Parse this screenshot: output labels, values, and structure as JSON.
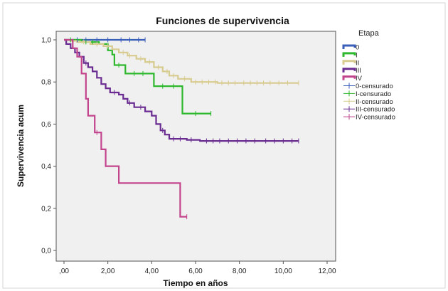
{
  "chart_data": {
    "type": "line",
    "step": true,
    "title": "Funciones de supervivencia",
    "xlabel": "Tiempo en años",
    "ylabel": "Supervivencia acum",
    "xlim": [
      0,
      12
    ],
    "ylim": [
      0,
      1
    ],
    "xticks": [
      ",00",
      "2,00",
      "4,00",
      "6,00",
      "8,00",
      "10,00",
      "12,00"
    ],
    "yticks": [
      "0,0",
      "0,2",
      "0,4",
      "0,6",
      "0,8",
      "1,0"
    ],
    "xtick_values": [
      0,
      2,
      4,
      6,
      8,
      10,
      12
    ],
    "ytick_values": [
      0,
      0.2,
      0.4,
      0.6,
      0.8,
      1.0
    ],
    "grid": false,
    "plot_background": "#f0f0f0",
    "legend_title": "Etapa",
    "legend_position": "right",
    "series": [
      {
        "name": "0",
        "color": "#3a5fb8",
        "points": [
          [
            0,
            1.0
          ],
          [
            3.7,
            1.0
          ]
        ],
        "censored": [
          0.6,
          1.0,
          1.5,
          2.0,
          2.6,
          3.0,
          3.4,
          3.7
        ]
      },
      {
        "name": "I",
        "color": "#2db82d",
        "points": [
          [
            0,
            1.0
          ],
          [
            0.8,
            1.0
          ],
          [
            0.8,
            0.99
          ],
          [
            1.6,
            0.99
          ],
          [
            1.6,
            0.98
          ],
          [
            2.0,
            0.98
          ],
          [
            2.0,
            0.95
          ],
          [
            2.2,
            0.95
          ],
          [
            2.2,
            0.93
          ],
          [
            2.3,
            0.93
          ],
          [
            2.3,
            0.88
          ],
          [
            2.8,
            0.88
          ],
          [
            2.8,
            0.84
          ],
          [
            4.1,
            0.84
          ],
          [
            4.1,
            0.78
          ],
          [
            5.4,
            0.78
          ],
          [
            5.4,
            0.65
          ],
          [
            6.7,
            0.65
          ]
        ],
        "censored": [
          0.3,
          1.0,
          1.3,
          2.5,
          3.2,
          3.6,
          4.5,
          5.0,
          6.0,
          6.7
        ]
      },
      {
        "name": "II",
        "color": "#d8cb8f",
        "points": [
          [
            0,
            1.0
          ],
          [
            0.3,
            1.0
          ],
          [
            0.3,
            0.995
          ],
          [
            0.6,
            0.995
          ],
          [
            0.6,
            0.99
          ],
          [
            1.2,
            0.99
          ],
          [
            1.2,
            0.98
          ],
          [
            1.8,
            0.98
          ],
          [
            1.8,
            0.97
          ],
          [
            2.2,
            0.97
          ],
          [
            2.2,
            0.955
          ],
          [
            2.5,
            0.955
          ],
          [
            2.5,
            0.94
          ],
          [
            2.9,
            0.94
          ],
          [
            2.9,
            0.925
          ],
          [
            3.3,
            0.925
          ],
          [
            3.3,
            0.91
          ],
          [
            3.7,
            0.91
          ],
          [
            3.7,
            0.895
          ],
          [
            4.1,
            0.895
          ],
          [
            4.1,
            0.87
          ],
          [
            4.5,
            0.87
          ],
          [
            4.5,
            0.85
          ],
          [
            4.8,
            0.85
          ],
          [
            4.8,
            0.83
          ],
          [
            5.2,
            0.83
          ],
          [
            5.2,
            0.815
          ],
          [
            5.8,
            0.815
          ],
          [
            5.8,
            0.8
          ],
          [
            7.0,
            0.8
          ],
          [
            7.0,
            0.795
          ],
          [
            10.7,
            0.795
          ]
        ],
        "censored": [
          0.9,
          1.5,
          2.0,
          2.7,
          3.0,
          3.5,
          3.9,
          4.3,
          4.7,
          5.0,
          5.5,
          6.0,
          6.3,
          6.6,
          6.9,
          7.2,
          7.5,
          7.8,
          8.2,
          8.5,
          8.8,
          9.1,
          9.4,
          9.8,
          10.2,
          10.7
        ]
      },
      {
        "name": "III",
        "color": "#6a2c91",
        "points": [
          [
            0,
            1.0
          ],
          [
            0.1,
            1.0
          ],
          [
            0.1,
            0.98
          ],
          [
            0.3,
            0.98
          ],
          [
            0.3,
            0.96
          ],
          [
            0.5,
            0.96
          ],
          [
            0.5,
            0.94
          ],
          [
            0.7,
            0.94
          ],
          [
            0.7,
            0.92
          ],
          [
            0.9,
            0.92
          ],
          [
            0.9,
            0.89
          ],
          [
            1.1,
            0.89
          ],
          [
            1.1,
            0.87
          ],
          [
            1.3,
            0.87
          ],
          [
            1.3,
            0.85
          ],
          [
            1.5,
            0.85
          ],
          [
            1.5,
            0.82
          ],
          [
            1.7,
            0.82
          ],
          [
            1.7,
            0.79
          ],
          [
            1.9,
            0.79
          ],
          [
            1.9,
            0.77
          ],
          [
            2.1,
            0.77
          ],
          [
            2.1,
            0.75
          ],
          [
            2.5,
            0.75
          ],
          [
            2.5,
            0.74
          ],
          [
            2.7,
            0.74
          ],
          [
            2.7,
            0.72
          ],
          [
            2.9,
            0.72
          ],
          [
            2.9,
            0.7
          ],
          [
            3.2,
            0.7
          ],
          [
            3.2,
            0.68
          ],
          [
            3.7,
            0.68
          ],
          [
            3.7,
            0.66
          ],
          [
            4.0,
            0.66
          ],
          [
            4.0,
            0.64
          ],
          [
            4.2,
            0.64
          ],
          [
            4.2,
            0.6
          ],
          [
            4.4,
            0.6
          ],
          [
            4.4,
            0.57
          ],
          [
            4.6,
            0.57
          ],
          [
            4.6,
            0.55
          ],
          [
            4.8,
            0.55
          ],
          [
            4.8,
            0.53
          ],
          [
            5.6,
            0.53
          ],
          [
            5.6,
            0.525
          ],
          [
            6.2,
            0.525
          ],
          [
            6.2,
            0.52
          ],
          [
            10.7,
            0.52
          ]
        ],
        "censored": [
          1.0,
          2.3,
          3.0,
          3.5,
          4.5,
          5.0,
          5.3,
          5.8,
          6.5,
          6.8,
          7.1,
          7.5,
          7.9,
          8.3,
          8.7,
          9.2,
          9.6,
          10.0,
          10.4,
          10.7
        ]
      },
      {
        "name": "IV",
        "color": "#c2448d",
        "points": [
          [
            0,
            1.0
          ],
          [
            0.4,
            1.0
          ],
          [
            0.4,
            0.96
          ],
          [
            0.6,
            0.96
          ],
          [
            0.6,
            0.92
          ],
          [
            0.8,
            0.92
          ],
          [
            0.8,
            0.84
          ],
          [
            1.0,
            0.84
          ],
          [
            1.0,
            0.72
          ],
          [
            1.1,
            0.72
          ],
          [
            1.1,
            0.64
          ],
          [
            1.4,
            0.64
          ],
          [
            1.4,
            0.56
          ],
          [
            1.7,
            0.56
          ],
          [
            1.7,
            0.48
          ],
          [
            1.9,
            0.48
          ],
          [
            1.9,
            0.4
          ],
          [
            2.5,
            0.4
          ],
          [
            2.5,
            0.32
          ],
          [
            5.3,
            0.32
          ],
          [
            5.3,
            0.16
          ],
          [
            5.6,
            0.16
          ]
        ],
        "censored": [
          1.5,
          5.6
        ]
      }
    ],
    "legend_entries": [
      {
        "label": "0",
        "color": "#3a5fb8",
        "kind": "line"
      },
      {
        "label": "I",
        "color": "#2db82d",
        "kind": "line"
      },
      {
        "label": "II",
        "color": "#d8cb8f",
        "kind": "line"
      },
      {
        "label": "III",
        "color": "#6a2c91",
        "kind": "line"
      },
      {
        "label": "IV",
        "color": "#c2448d",
        "kind": "line"
      },
      {
        "label": "0-censurado",
        "color": "#3a5fb8",
        "kind": "censor"
      },
      {
        "label": "I-censurado",
        "color": "#2db82d",
        "kind": "censor"
      },
      {
        "label": "II-censurado",
        "color": "#d8cb8f",
        "kind": "censor"
      },
      {
        "label": "III-censurado",
        "color": "#6a2c91",
        "kind": "censor"
      },
      {
        "label": "IV-censurado",
        "color": "#c2448d",
        "kind": "censor"
      }
    ]
  }
}
